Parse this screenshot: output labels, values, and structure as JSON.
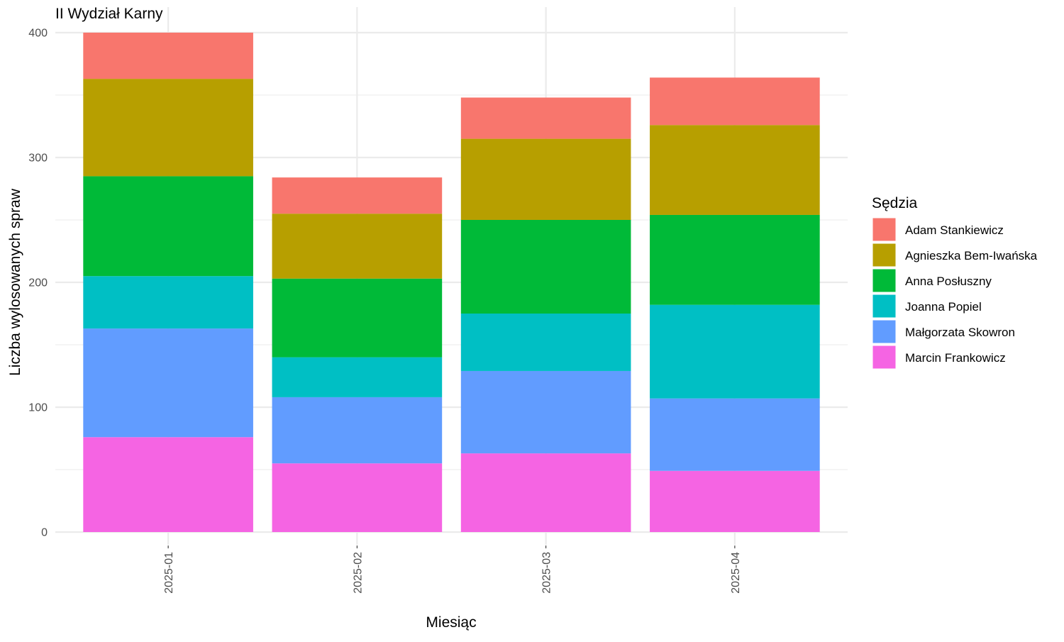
{
  "chart_data": {
    "type": "bar",
    "stacked": true,
    "title": "II Wydział Karny",
    "xlabel": "Miesiąc",
    "ylabel": "Liczba wylosowanych spraw",
    "categories": [
      "2025-01",
      "2025-02",
      "2025-03",
      "2025-04"
    ],
    "ylim": [
      0,
      400
    ],
    "yticks": [
      0,
      100,
      200,
      300,
      400
    ],
    "legend_title": "Sędzia",
    "legend_position": "right",
    "grid": true,
    "series": [
      {
        "name": "Adam Stankiewicz",
        "color": "#F8766D",
        "values": [
          37,
          29,
          33,
          38
        ]
      },
      {
        "name": "Agnieszka Bem-Iwańska",
        "color": "#B79F00",
        "values": [
          78,
          52,
          65,
          72
        ]
      },
      {
        "name": "Anna Posłuszny",
        "color": "#00BA38",
        "values": [
          80,
          63,
          75,
          72
        ]
      },
      {
        "name": "Joanna Popiel",
        "color": "#00BFC4",
        "values": [
          42,
          32,
          46,
          75
        ]
      },
      {
        "name": "Małgorzata Skowron",
        "color": "#619CFF",
        "values": [
          87,
          53,
          66,
          58
        ]
      },
      {
        "name": "Marcin Frankowicz",
        "color": "#F564E3",
        "values": [
          76,
          55,
          63,
          49
        ]
      }
    ]
  }
}
